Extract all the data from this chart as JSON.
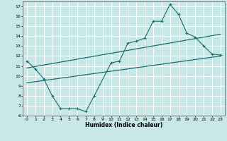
{
  "title": "",
  "xlabel": "Humidex (Indice chaleur)",
  "xlim": [
    -0.5,
    23.5
  ],
  "ylim": [
    6,
    17.5
  ],
  "xticks": [
    0,
    1,
    2,
    3,
    4,
    5,
    6,
    7,
    8,
    9,
    10,
    11,
    12,
    13,
    14,
    15,
    16,
    17,
    18,
    19,
    20,
    21,
    22,
    23
  ],
  "yticks": [
    6,
    7,
    8,
    9,
    10,
    11,
    12,
    13,
    14,
    15,
    16,
    17
  ],
  "bg_color": "#c8e8e8",
  "line_color": "#1a6b6b",
  "grid_color": "#ffffff",
  "line1_x": [
    0,
    1,
    2,
    3,
    4,
    5,
    6,
    7,
    8,
    10,
    11,
    12,
    13,
    14,
    15,
    16,
    17,
    18,
    19,
    20,
    21,
    22,
    23
  ],
  "line1_y": [
    11.5,
    10.7,
    9.7,
    8.0,
    6.7,
    6.7,
    6.7,
    6.4,
    8.0,
    11.3,
    11.5,
    13.3,
    13.5,
    13.8,
    15.5,
    15.5,
    17.2,
    16.2,
    14.3,
    13.9,
    13.0,
    12.2,
    12.1
  ],
  "line2_x": [
    0,
    23
  ],
  "line2_y": [
    10.8,
    14.2
  ],
  "line3_x": [
    0,
    23
  ],
  "line3_y": [
    9.3,
    12.0
  ]
}
